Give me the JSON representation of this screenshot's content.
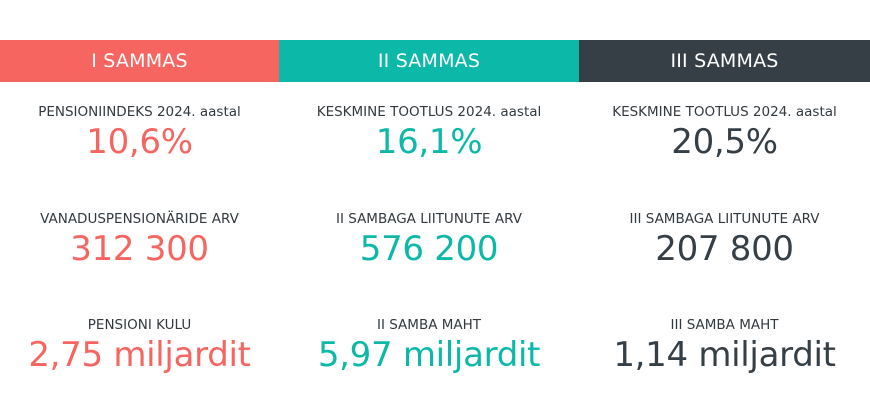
{
  "colors": {
    "pillar1": "#f76560",
    "pillar2": "#0cb8a8",
    "pillar3": "#353f45"
  },
  "pillars": [
    {
      "title": "I SAMMAS",
      "stats": [
        {
          "label": "PENSIONIINDEKS 2024. aastal",
          "value": "10,6%"
        },
        {
          "label": "VANADUSPENSIONÄRIDE ARV",
          "value": "312 300"
        },
        {
          "label": "PENSIONI KULU",
          "value": "2,75 miljardit"
        }
      ]
    },
    {
      "title": "II SAMMAS",
      "stats": [
        {
          "label": "KESKMINE TOOTLUS 2024. aastal",
          "value": "16,1%"
        },
        {
          "label": "II SAMBAGA LIITUNUTE ARV",
          "value": "576 200"
        },
        {
          "label": "II SAMBA MAHT",
          "value": "5,97 miljardit"
        }
      ]
    },
    {
      "title": "III SAMMAS",
      "stats": [
        {
          "label": "KESKMINE TOOTLUS 2024. aastal",
          "value": "20,5%"
        },
        {
          "label": "III SAMBAGA LIITUNUTE ARV",
          "value": "207 800"
        },
        {
          "label": "III SAMBA MAHT",
          "value": "1,14 miljardit"
        }
      ]
    }
  ]
}
